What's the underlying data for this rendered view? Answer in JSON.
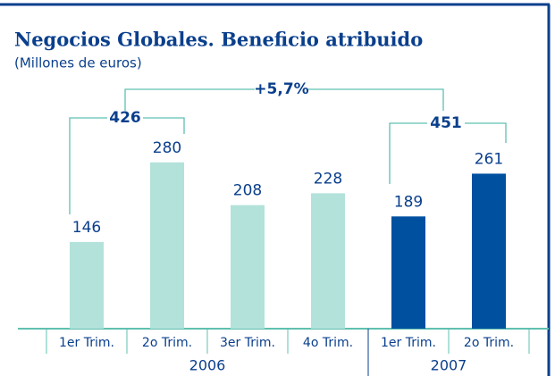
{
  "chart_data": {
    "type": "bar",
    "title": "Negocios Globales. Beneficio atribuido",
    "subtitle": "(Millones de euros)",
    "categories": [
      "1er Trim.",
      "2o Trim.",
      "3er Trim.",
      "4o Trim.",
      "1er Trim.",
      "2o Trim."
    ],
    "series": [
      {
        "name": "2006",
        "color": "#b3e2da",
        "values": [
          146,
          280,
          208,
          228,
          null,
          null
        ]
      },
      {
        "name": "2007",
        "color": "#0050a0",
        "values": [
          null,
          null,
          null,
          null,
          189,
          261
        ]
      }
    ],
    "annotations": [
      "426",
      "451",
      "+5,7%"
    ]
  }
}
